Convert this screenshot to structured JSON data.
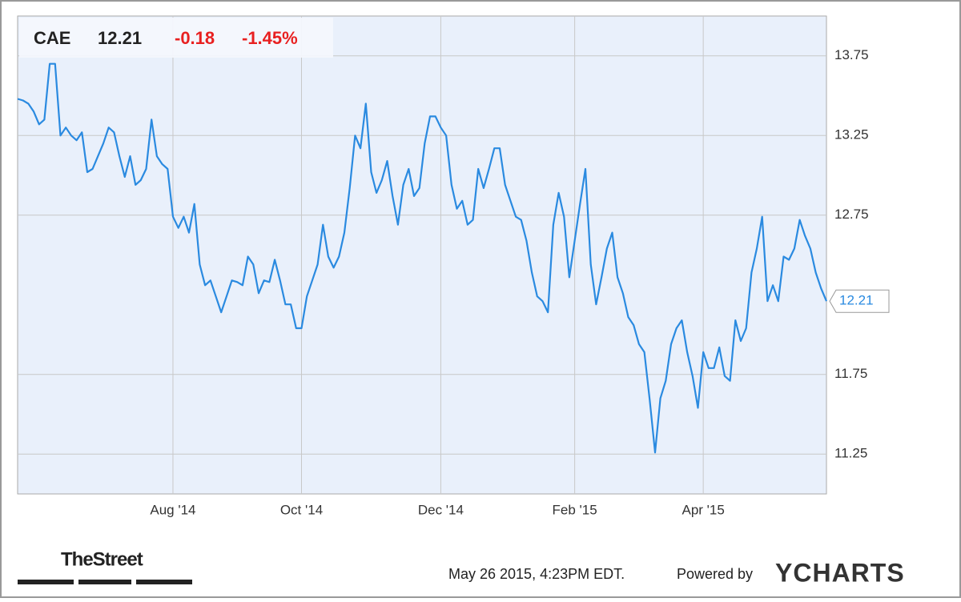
{
  "header": {
    "ticker": "CAE",
    "price": "12.21",
    "change": "-0.18",
    "change_pct": "-1.45%"
  },
  "footer": {
    "brand": "TheStreet",
    "timestamp": "May 26 2015, 4:23PM EDT.",
    "powered": "Powered by",
    "logo": "YCHARTS"
  },
  "chart_data": {
    "type": "line",
    "color": "#2a8ae0",
    "grid": true,
    "ylim": [
      11.0,
      14.0
    ],
    "yticks": [
      11.25,
      11.75,
      12.75,
      13.25,
      13.75
    ],
    "categories": [
      null,
      null,
      null,
      null,
      null,
      null,
      null,
      null,
      null,
      null,
      null,
      null,
      null,
      null,
      null,
      null,
      null,
      null,
      null,
      null,
      null,
      null,
      null,
      null,
      null,
      null,
      null,
      null,
      null,
      "Aug '14",
      null,
      null,
      null,
      null,
      null,
      null,
      null,
      null,
      null,
      null,
      null,
      null,
      null,
      null,
      null,
      null,
      null,
      null,
      null,
      null,
      null,
      null,
      null,
      "Oct '14",
      null,
      null,
      null,
      null,
      null,
      null,
      null,
      null,
      null,
      null,
      null,
      null,
      null,
      null,
      null,
      null,
      null,
      null,
      null,
      null,
      null,
      null,
      null,
      null,
      null,
      "Dec '14",
      null,
      null,
      null,
      null,
      null,
      null,
      null,
      null,
      null,
      null,
      null,
      null,
      null,
      null,
      null,
      null,
      null,
      null,
      null,
      null,
      null,
      null,
      null,
      null,
      "Feb '15",
      null,
      null,
      null,
      null,
      null,
      null,
      null,
      null,
      null,
      null,
      null,
      null,
      null,
      null,
      null,
      null,
      null,
      null,
      null,
      null,
      null,
      null,
      null,
      "Apr '15",
      null,
      null,
      null,
      null,
      null,
      null,
      null,
      null,
      null,
      null,
      null,
      null,
      null,
      null,
      null,
      null,
      null,
      null,
      null,
      null,
      null,
      null,
      null
    ],
    "values": [
      13.48,
      13.47,
      13.45,
      13.4,
      13.32,
      13.35,
      13.7,
      13.7,
      13.25,
      13.3,
      13.25,
      13.22,
      13.27,
      13.02,
      13.04,
      13.12,
      13.2,
      13.3,
      13.27,
      13.12,
      12.99,
      13.12,
      12.94,
      12.97,
      13.04,
      13.35,
      13.12,
      13.07,
      13.04,
      12.74,
      12.67,
      12.74,
      12.64,
      12.82,
      12.44,
      12.31,
      12.34,
      12.24,
      12.14,
      12.24,
      12.34,
      12.33,
      12.31,
      12.49,
      12.44,
      12.26,
      12.34,
      12.33,
      12.47,
      12.34,
      12.19,
      12.19,
      12.04,
      12.04,
      12.24,
      12.34,
      12.44,
      12.69,
      12.49,
      12.42,
      12.49,
      12.64,
      12.92,
      13.25,
      13.17,
      13.45,
      13.02,
      12.89,
      12.97,
      13.09,
      12.87,
      12.69,
      12.94,
      13.04,
      12.87,
      12.92,
      13.2,
      13.37,
      13.37,
      13.3,
      13.25,
      12.94,
      12.79,
      12.84,
      12.69,
      12.72,
      13.04,
      12.92,
      13.04,
      13.17,
      13.17,
      12.94,
      12.84,
      12.74,
      12.72,
      12.59,
      12.39,
      12.24,
      12.21,
      12.14,
      12.69,
      12.89,
      12.74,
      12.36,
      12.59,
      12.82,
      13.04,
      12.44,
      12.19,
      12.36,
      12.54,
      12.64,
      12.36,
      12.26,
      12.11,
      12.06,
      11.94,
      11.89,
      11.59,
      11.26,
      11.6,
      11.71,
      11.94,
      12.04,
      12.09,
      11.89,
      11.74,
      11.54,
      11.89,
      11.79,
      11.79,
      11.92,
      11.74,
      11.71,
      12.09,
      11.96,
      12.04,
      12.39,
      12.54,
      12.74,
      12.21,
      12.31,
      12.21,
      12.49,
      12.47,
      12.54,
      12.72,
      12.62,
      12.54,
      12.39,
      12.29,
      12.21
    ]
  }
}
